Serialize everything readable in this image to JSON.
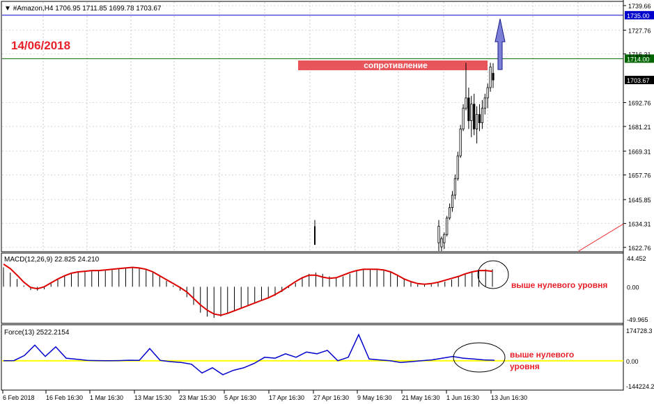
{
  "header": {
    "title": "#Amazon,H4  1706.95 1711.85 1699.78 1703.67"
  },
  "annotations": {
    "date": "14/06/2018",
    "resistance": "сопротивление",
    "macd_note": "выше нулевого уровня",
    "force_note_1": "выше нулевого",
    "force_note_2": "уровня"
  },
  "price_axis": {
    "ticks": [
      "1739.66",
      "1727.76",
      "1716.31",
      "1692.76",
      "1681.21",
      "1669.31",
      "1657.76",
      "1645.85",
      "1634.31",
      "1622.76"
    ],
    "levels": [
      {
        "label": "1735.00",
        "value": 1735.0,
        "color": "#0000cc"
      },
      {
        "label": "1714.00",
        "value": 1714.0,
        "color": "#006400"
      },
      {
        "label": "1703.67",
        "value": 1703.67,
        "color": "#000000"
      }
    ]
  },
  "macd": {
    "label": "MACD(12,26,9) 22.825 24.210",
    "ticks": [
      "44.452",
      "0.00",
      "-49.965"
    ],
    "signal_color": "#dd0000"
  },
  "force": {
    "label": "Force(13) 2522.2154",
    "ticks": [
      "174728.3",
      "0.00",
      "-144224.2"
    ],
    "line_color": "#0000cc",
    "zero_color": "#ffff00"
  },
  "time_axis": {
    "labels": [
      "6 Feb 2018",
      "16 Feb 16:30",
      "1 Mar 16:30",
      "13 Mar 15:30",
      "23 Mar 15:30",
      "5 Apr 16:30",
      "17 Apr 16:30",
      "27 Apr 16:30",
      "9 May 16:30",
      "21 May 16:30",
      "1 Jun 16:30",
      "13 Jun 16:30"
    ]
  },
  "chart_data": [
    {
      "type": "candlestick",
      "title": "#Amazon,H4",
      "ylim": [
        1621,
        1741
      ],
      "levels": [
        1735.0,
        1714.0
      ],
      "candles": [
        {
          "o": 1625,
          "h": 1636,
          "l": 1621,
          "c": 1633
        },
        {
          "o": 1623,
          "h": 1628,
          "l": 1621,
          "c": 1627
        },
        {
          "o": 1625,
          "h": 1630,
          "l": 1622,
          "c": 1629
        },
        {
          "o": 1629,
          "h": 1638,
          "l": 1628,
          "c": 1637
        },
        {
          "o": 1637,
          "h": 1644,
          "l": 1636,
          "c": 1642
        },
        {
          "o": 1642,
          "h": 1650,
          "l": 1640,
          "c": 1648
        },
        {
          "o": 1648,
          "h": 1658,
          "l": 1646,
          "c": 1656
        },
        {
          "o": 1656,
          "h": 1669,
          "l": 1655,
          "c": 1667
        },
        {
          "o": 1667,
          "h": 1682,
          "l": 1666,
          "c": 1680
        },
        {
          "o": 1680,
          "h": 1692,
          "l": 1679,
          "c": 1690
        },
        {
          "o": 1690,
          "h": 1712,
          "l": 1689,
          "c": 1695
        },
        {
          "o": 1695,
          "h": 1700,
          "l": 1680,
          "c": 1684
        },
        {
          "o": 1684,
          "h": 1696,
          "l": 1676,
          "c": 1692
        },
        {
          "o": 1692,
          "h": 1697,
          "l": 1677,
          "c": 1680
        },
        {
          "o": 1680,
          "h": 1691,
          "l": 1673,
          "c": 1687
        },
        {
          "o": 1687,
          "h": 1692,
          "l": 1679,
          "c": 1683
        },
        {
          "o": 1683,
          "h": 1694,
          "l": 1680,
          "c": 1690
        },
        {
          "o": 1690,
          "h": 1697,
          "l": 1687,
          "c": 1695
        },
        {
          "o": 1695,
          "h": 1702,
          "l": 1690,
          "c": 1700
        },
        {
          "o": 1700,
          "h": 1712,
          "l": 1698,
          "c": 1710
        },
        {
          "o": 1706.95,
          "h": 1711.85,
          "l": 1699.78,
          "c": 1703.67
        }
      ],
      "spike": {
        "high": 1636,
        "low": 1624
      }
    },
    {
      "type": "line",
      "title": "MACD(12,26,9) 22.825 24.210",
      "ylim": [
        -49.965,
        44.452
      ],
      "histogram": [
        30,
        22,
        12,
        2,
        -5,
        -6,
        -4,
        5,
        12,
        17,
        20,
        22,
        23,
        24,
        24,
        25,
        26,
        28,
        30,
        30,
        29,
        27,
        22,
        16,
        9,
        2,
        -6,
        -16,
        -28,
        -40,
        -46,
        -48,
        -46,
        -42,
        -38,
        -34,
        -30,
        -26,
        -22,
        -18,
        -14,
        -8,
        -2,
        6,
        14,
        20,
        22,
        20,
        16,
        14,
        16,
        20,
        25,
        27,
        28,
        27,
        25,
        22,
        18,
        13,
        8,
        4,
        3,
        4,
        6,
        8,
        11,
        15,
        20,
        23,
        26,
        27,
        27
      ],
      "signal": [
        35,
        28,
        18,
        7,
        -1,
        -3,
        0,
        6,
        12,
        17,
        21,
        23,
        24,
        25,
        25,
        26,
        27,
        28,
        29,
        30,
        29,
        27,
        23,
        17,
        11,
        5,
        -1,
        -8,
        -18,
        -28,
        -36,
        -42,
        -44,
        -41,
        -37,
        -33,
        -29,
        -25,
        -21,
        -17,
        -12,
        -6,
        1,
        8,
        14,
        18,
        18,
        15,
        13,
        14,
        18,
        22,
        25,
        27,
        27,
        27,
        26,
        23,
        18,
        12,
        8,
        5,
        4,
        5,
        7,
        10,
        13,
        16,
        20,
        23,
        25,
        25,
        24
      ]
    },
    {
      "type": "line",
      "title": "Force(13) 2522.2154",
      "ylim": [
        -144224.2,
        174728.3
      ],
      "values": [
        0,
        1000,
        30000,
        90000,
        25000,
        80000,
        15000,
        9000,
        2000,
        1000,
        0,
        1000,
        3000,
        2000,
        70000,
        2000,
        -5000,
        -10000,
        -20000,
        -70000,
        -40000,
        -80000,
        -55000,
        -40000,
        -15000,
        20000,
        15000,
        40000,
        20000,
        50000,
        40000,
        60000,
        0,
        20000,
        150000,
        10000,
        5000,
        0,
        -10000,
        -5000,
        0,
        5000,
        15000,
        25000,
        15000,
        10000,
        5000,
        3000
      ]
    }
  ]
}
